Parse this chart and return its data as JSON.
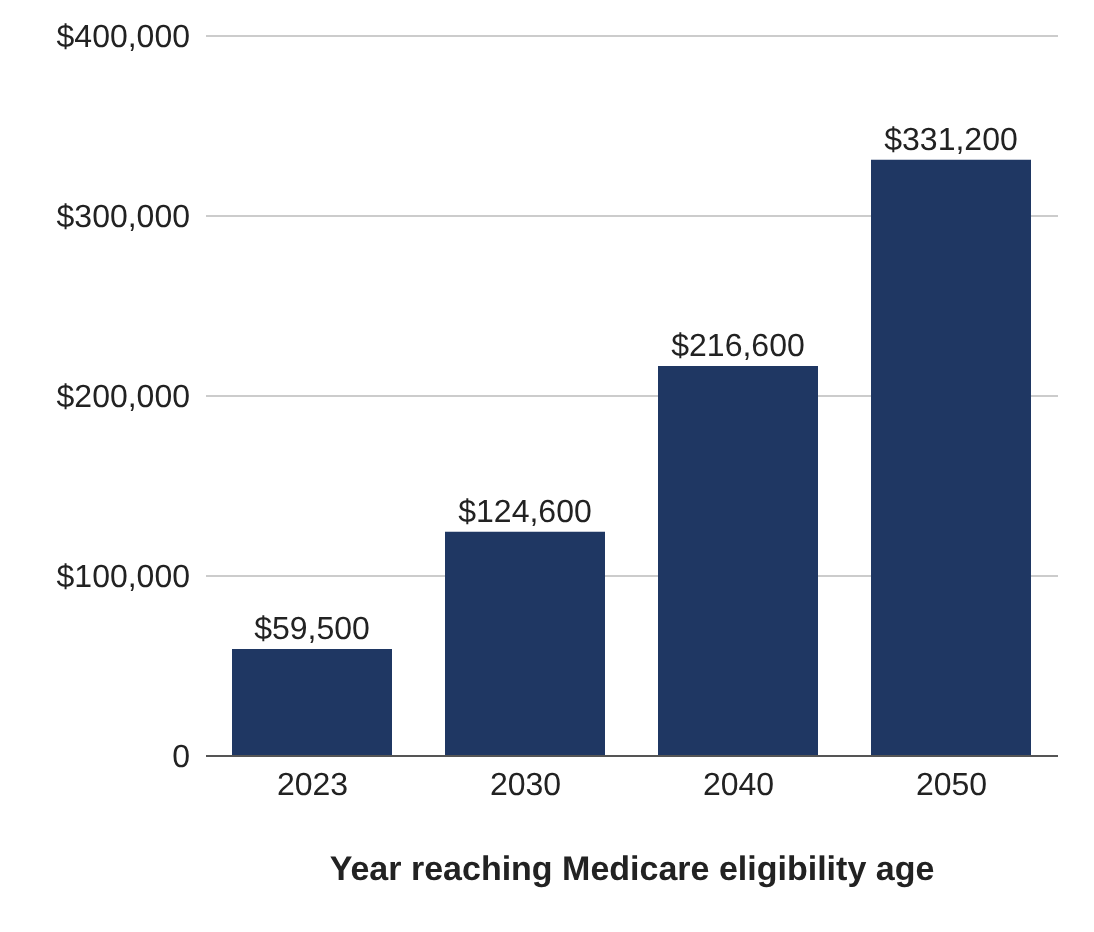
{
  "chart_data": {
    "type": "bar",
    "xlabel": "Year reaching Medicare eligibility age",
    "categories": [
      "2023",
      "2030",
      "2040",
      "2050"
    ],
    "values": [
      59500,
      124600,
      216600,
      331200
    ],
    "value_labels": [
      "$59,500",
      "$124,600",
      "$216,600",
      "$331,200"
    ],
    "color": "#1f3763",
    "ylim": [
      0,
      400000
    ],
    "yticks": [
      {
        "value": 0,
        "label": "0"
      },
      {
        "value": 100000,
        "label": "$100,000"
      },
      {
        "value": 200000,
        "label": "$200,000"
      },
      {
        "value": 300000,
        "label": "$300,000"
      },
      {
        "value": 400000,
        "label": "$400,000"
      }
    ],
    "grid": "y"
  }
}
